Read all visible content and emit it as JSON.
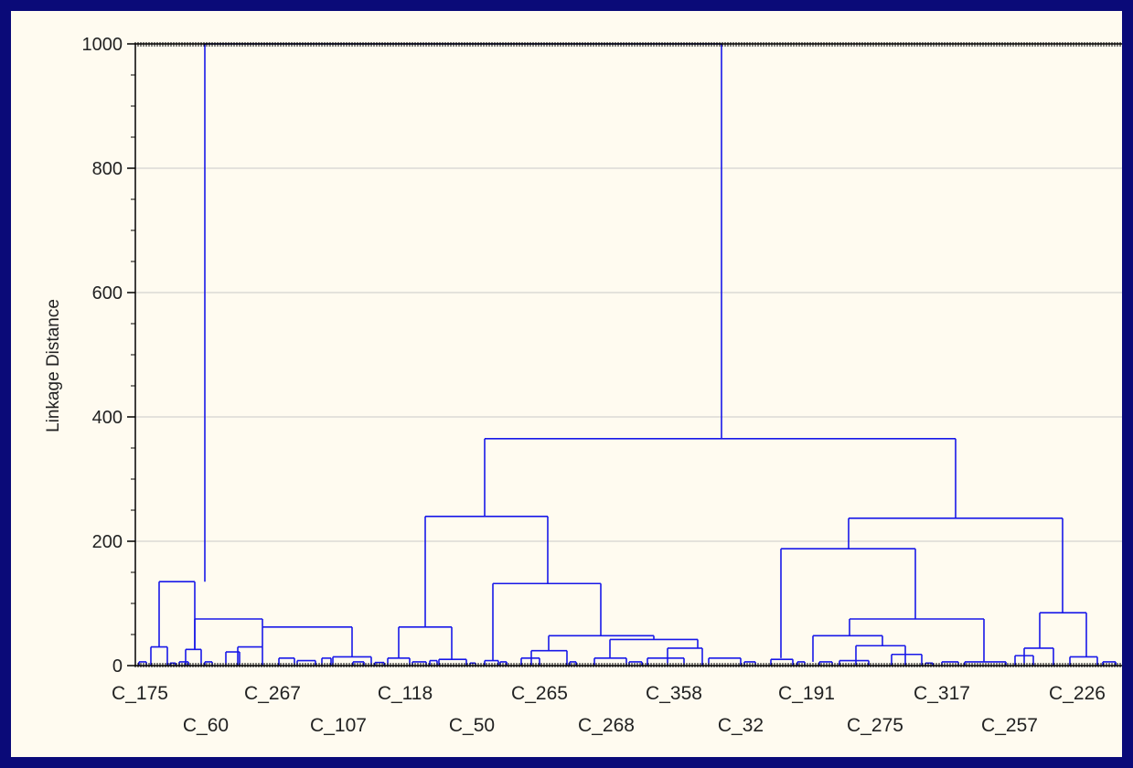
{
  "chart_data": {
    "type": "dendrogram",
    "ylabel": "Linkage Distance",
    "ylim": [
      0,
      1000
    ],
    "y_ticks": [
      0,
      200,
      400,
      600,
      800,
      1000
    ],
    "grid": true,
    "leaf_labels_row1": [
      "C_175",
      "C_267",
      "C_118",
      "C_265",
      "C_358",
      "C_191",
      "C_317",
      "C_226"
    ],
    "leaf_labels_row2": [
      "C_60",
      "C_107",
      "C_50",
      "C_268",
      "C_32",
      "C_275",
      "C_257"
    ],
    "merges": [
      {
        "id": "left_root",
        "height": 135,
        "children": [
          "cluster_175",
          "cluster_60"
        ]
      },
      {
        "id": "cluster_60",
        "height": 75,
        "children": [
          "cluster_60_a",
          "cluster_267_107"
        ]
      },
      {
        "id": "cluster_267_107",
        "height": 62,
        "children": [
          "cluster_267",
          "cluster_107"
        ]
      },
      {
        "id": "mid_root",
        "height": 240,
        "children": [
          "cluster_118_50",
          "cluster_265_32"
        ]
      },
      {
        "id": "cluster_118_50",
        "height": 62,
        "children": [
          "cluster_118",
          "cluster_50"
        ]
      },
      {
        "id": "cluster_265_32",
        "height": 132,
        "children": [
          "cluster_265_a",
          "cluster_265_b"
        ]
      },
      {
        "id": "cluster_265_b",
        "height": 48,
        "children": [
          "cluster_265",
          "cluster_268_32"
        ]
      },
      {
        "id": "cluster_268_32",
        "height": 42,
        "children": [
          "cluster_268",
          "cluster_358_32"
        ]
      },
      {
        "id": "right_root",
        "height": 237,
        "children": [
          "cluster_191_317",
          "cluster_257_226"
        ]
      },
      {
        "id": "cluster_191_317",
        "height": 188,
        "children": [
          "cluster_191",
          "cluster_275_317"
        ]
      },
      {
        "id": "cluster_275_317",
        "height": 75,
        "children": [
          "cluster_275_a",
          "cluster_317"
        ]
      },
      {
        "id": "cluster_257_226",
        "height": 85,
        "children": [
          "cluster_257",
          "cluster_226"
        ]
      },
      {
        "id": "mid_right",
        "height": 365,
        "children": [
          "mid_root",
          "right_root"
        ]
      },
      {
        "id": "root",
        "height": 1000,
        "children": [
          "left_root",
          "mid_right"
        ]
      }
    ]
  },
  "colors": {
    "frame": "#0a0a78",
    "background": "#fffbf0",
    "line": "#1818e8",
    "grid": "#c8c8c8",
    "axis": "#000000"
  }
}
